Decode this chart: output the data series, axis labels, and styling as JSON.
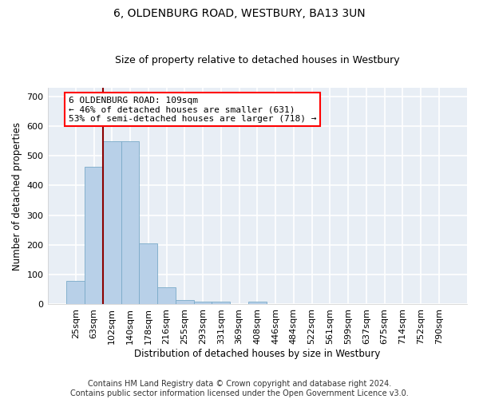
{
  "title1": "6, OLDENBURG ROAD, WESTBURY, BA13 3UN",
  "title2": "Size of property relative to detached houses in Westbury",
  "xlabel": "Distribution of detached houses by size in Westbury",
  "ylabel": "Number of detached properties",
  "bar_color": "#b8d0e8",
  "bar_edge_color": "#7aaac8",
  "categories": [
    "25sqm",
    "63sqm",
    "102sqm",
    "140sqm",
    "178sqm",
    "216sqm",
    "255sqm",
    "293sqm",
    "331sqm",
    "369sqm",
    "408sqm",
    "446sqm",
    "484sqm",
    "522sqm",
    "561sqm",
    "599sqm",
    "637sqm",
    "675sqm",
    "714sqm",
    "752sqm",
    "790sqm"
  ],
  "values": [
    80,
    462,
    548,
    548,
    204,
    57,
    15,
    10,
    10,
    0,
    8,
    0,
    0,
    0,
    0,
    0,
    0,
    0,
    0,
    0,
    0
  ],
  "ylim": [
    0,
    730
  ],
  "yticks": [
    0,
    100,
    200,
    300,
    400,
    500,
    600,
    700
  ],
  "annotation_text": "6 OLDENBURG ROAD: 109sqm\n← 46% of detached houses are smaller (631)\n53% of semi-detached houses are larger (718) →",
  "vline_position": 2,
  "background_color": "#e8eef5",
  "grid_color": "#d0dae6",
  "footer_text": "Contains HM Land Registry data © Crown copyright and database right 2024.\nContains public sector information licensed under the Open Government Licence v3.0.",
  "title1_fontsize": 10,
  "title2_fontsize": 9,
  "xlabel_fontsize": 8.5,
  "ylabel_fontsize": 8.5,
  "tick_fontsize": 8,
  "annotation_fontsize": 8,
  "footer_fontsize": 7
}
